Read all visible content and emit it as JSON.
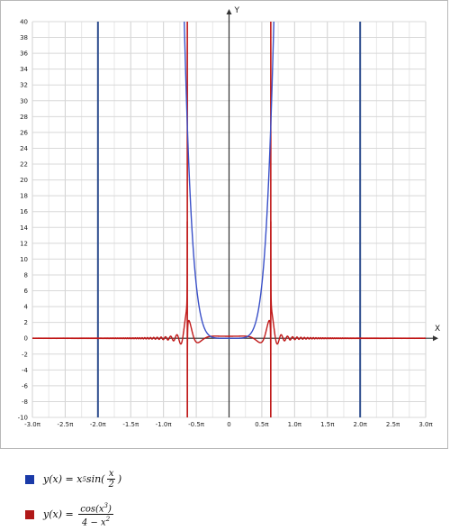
{
  "chart_data": {
    "type": "line",
    "xlabel": "X",
    "ylabel": "Y",
    "xlim": [
      -3.0,
      3.0
    ],
    "x_unit": "π",
    "ylim": [
      -10,
      40
    ],
    "x_ticks": [
      "-3.0π",
      "-2.5π",
      "-2.0π",
      "-1.5π",
      "-1.0π",
      "-0.5π",
      "0",
      "0.5π",
      "1.0π",
      "1.5π",
      "2.0π",
      "2.5π",
      "3.0π"
    ],
    "y_ticks": [
      "40",
      "38",
      "36",
      "34",
      "32",
      "30",
      "28",
      "26",
      "24",
      "22",
      "20",
      "18",
      "16",
      "14",
      "12",
      "10",
      "8",
      "6",
      "4",
      "2",
      "0",
      "-2",
      "-4",
      "-6",
      "-8",
      "-10"
    ],
    "grid": true,
    "vertical_lines_at_x": [
      -2.0,
      2.0
    ],
    "series": [
      {
        "name": "y(x) = x^5 sin(x/2)",
        "color": "#3a50c8"
      },
      {
        "name": "y(x) = cos(x^3) / (4 - x^2)",
        "color": "#c01818"
      }
    ]
  },
  "legend": {
    "blue": {
      "color": "#1a3aa8",
      "lhs": "y(x)",
      "eq": "=",
      "x5": "x",
      "x5_exp": "5",
      "fn": "sin(",
      "num": "x",
      "den": "2",
      "close": ")"
    },
    "red": {
      "color": "#b01818",
      "lhs": "y(x)",
      "eq": "=",
      "num": "cos(x",
      "num_exp": "3",
      "num_close": ")",
      "den": "4 − x",
      "den_exp": "2"
    }
  }
}
